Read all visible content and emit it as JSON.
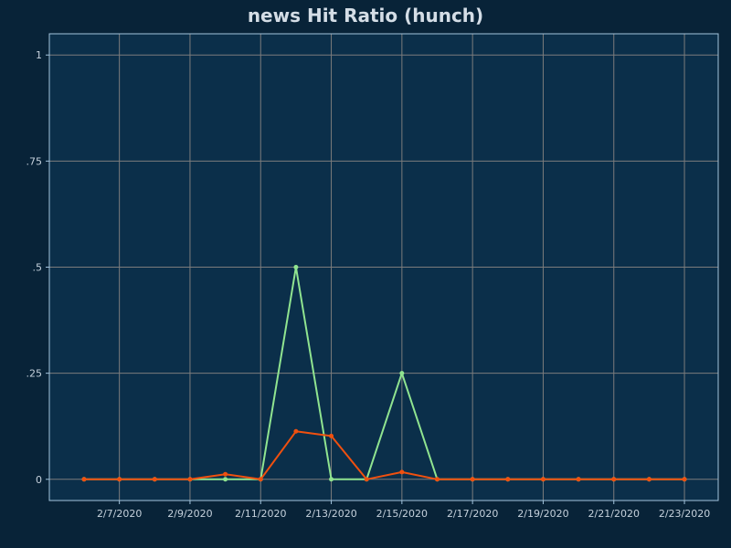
{
  "chart_data": {
    "type": "line",
    "title": "news Hit Ratio (hunch)",
    "xlabel": "",
    "ylabel": "",
    "ylim": [
      -0.05,
      1.05
    ],
    "grid": true,
    "x": [
      "2/6/2020",
      "2/7/2020",
      "2/8/2020",
      "2/9/2020",
      "2/10/2020",
      "2/11/2020",
      "2/12/2020",
      "2/13/2020",
      "2/14/2020",
      "2/15/2020",
      "2/16/2020",
      "2/17/2020",
      "2/18/2020",
      "2/19/2020",
      "2/20/2020",
      "2/21/2020",
      "2/22/2020",
      "2/23/2020"
    ],
    "x_tick_labels": [
      "2/7/2020",
      "2/9/2020",
      "2/11/2020",
      "2/13/2020",
      "2/15/2020",
      "2/17/2020",
      "2/19/2020",
      "2/21/2020",
      "2/23/2020"
    ],
    "y_ticks": [
      0,
      0.25,
      0.5,
      0.75,
      1
    ],
    "y_tick_labels": [
      "0",
      ".25",
      ".5",
      ".75",
      "1"
    ],
    "series": [
      {
        "color": "#90e490",
        "values": [
          0,
          0,
          0,
          0,
          0,
          0,
          0.5,
          0,
          0,
          0.25,
          0,
          0,
          0,
          0,
          0,
          0,
          0,
          0
        ]
      },
      {
        "color": "#f0500f",
        "values": [
          0,
          0,
          0,
          0,
          0.012,
          0,
          0.113,
          0.102,
          0,
          0.017,
          0,
          0,
          0,
          0,
          0,
          0,
          0,
          0
        ]
      }
    ],
    "colors": {
      "background": "#082338",
      "plot_background": "#0b2f4a",
      "grid": "#7c7c7c",
      "frame": "#a3c4dd"
    }
  }
}
